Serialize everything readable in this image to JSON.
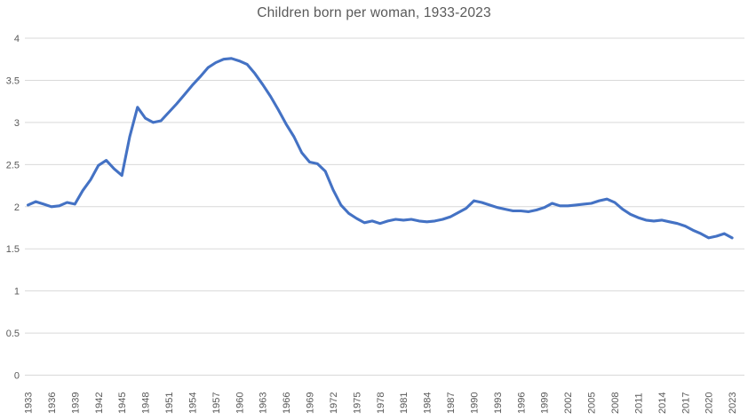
{
  "chart_data": {
    "type": "line",
    "title": "Children born per woman, 1933-2023",
    "xlabel": "",
    "ylabel": "",
    "ylim": [
      0,
      4
    ],
    "x_range": [
      1933,
      2023
    ],
    "grid": true,
    "legend": "none",
    "line_color": "#4472C4",
    "grid_color": "#D9D9D9",
    "axis_color": "#D9D9D9",
    "text_color": "#595959",
    "y_ticks": [
      0,
      0.5,
      1,
      1.5,
      2,
      2.5,
      3,
      3.5,
      4
    ],
    "y_tick_labels": [
      "0",
      "0.5",
      "1",
      "1.5",
      "2",
      "2.5",
      "3",
      "3.5",
      "4"
    ],
    "x_tick_labels": [
      "1933",
      "1936",
      "1939",
      "1942",
      "1945",
      "1948",
      "1951",
      "1954",
      "1957",
      "1960",
      "1963",
      "1966",
      "1969",
      "1972",
      "1975",
      "1978",
      "1981",
      "1984",
      "1987",
      "1990",
      "1993",
      "1996",
      "1999",
      "2002",
      "2005",
      "2008",
      "2011",
      "2014",
      "2017",
      "2020",
      "2023"
    ],
    "x": [
      1933,
      1934,
      1935,
      1936,
      1937,
      1938,
      1939,
      1940,
      1941,
      1942,
      1943,
      1944,
      1945,
      1946,
      1947,
      1948,
      1949,
      1950,
      1951,
      1952,
      1953,
      1954,
      1955,
      1956,
      1957,
      1958,
      1959,
      1960,
      1961,
      1962,
      1963,
      1964,
      1965,
      1966,
      1967,
      1968,
      1969,
      1970,
      1971,
      1972,
      1973,
      1974,
      1975,
      1976,
      1977,
      1978,
      1979,
      1980,
      1981,
      1982,
      1983,
      1984,
      1985,
      1986,
      1987,
      1988,
      1989,
      1990,
      1991,
      1992,
      1993,
      1994,
      1995,
      1996,
      1997,
      1998,
      1999,
      2000,
      2001,
      2002,
      2003,
      2004,
      2005,
      2006,
      2007,
      2008,
      2009,
      2010,
      2011,
      2012,
      2013,
      2014,
      2015,
      2016,
      2017,
      2018,
      2019,
      2020,
      2021,
      2022,
      2023
    ],
    "series": [
      {
        "name": "Children born per woman",
        "values": [
          2.02,
          2.06,
          2.03,
          2.0,
          2.01,
          2.05,
          2.03,
          2.19,
          2.32,
          2.49,
          2.55,
          2.45,
          2.37,
          2.83,
          3.18,
          3.05,
          3.0,
          3.02,
          3.12,
          3.22,
          3.33,
          3.44,
          3.54,
          3.65,
          3.71,
          3.75,
          3.76,
          3.73,
          3.69,
          3.58,
          3.45,
          3.31,
          3.15,
          2.98,
          2.83,
          2.64,
          2.53,
          2.51,
          2.42,
          2.2,
          2.02,
          1.92,
          1.86,
          1.81,
          1.83,
          1.8,
          1.83,
          1.85,
          1.84,
          1.85,
          1.83,
          1.82,
          1.83,
          1.85,
          1.88,
          1.93,
          1.98,
          2.07,
          2.05,
          2.02,
          1.99,
          1.97,
          1.95,
          1.95,
          1.94,
          1.96,
          1.99,
          2.04,
          2.01,
          2.01,
          2.02,
          2.03,
          2.04,
          2.07,
          2.09,
          2.05,
          1.97,
          1.91,
          1.87,
          1.84,
          1.83,
          1.84,
          1.82,
          1.8,
          1.77,
          1.72,
          1.68,
          1.63,
          1.65,
          1.68,
          1.63
        ]
      }
    ]
  }
}
